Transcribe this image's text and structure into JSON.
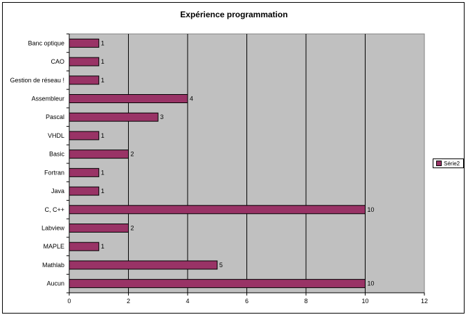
{
  "chart_data": {
    "type": "bar",
    "orientation": "horizontal",
    "title": "Expérience programmation",
    "categories": [
      "Banc optique",
      "CAO",
      "Gestion de réseau !",
      "Assembleur",
      "Pascal",
      "VHDL",
      "Basic",
      "Fortran",
      "Java",
      "C, C++",
      "Labview",
      "MAPLE",
      "Mathlab",
      "Aucun"
    ],
    "series": [
      {
        "name": "Série2",
        "values": [
          1,
          1,
          1,
          4,
          3,
          1,
          2,
          1,
          1,
          10,
          2,
          1,
          5,
          10
        ],
        "color": "#993366"
      }
    ],
    "xlim": [
      0,
      12
    ],
    "xticks": [
      0,
      2,
      4,
      6,
      8,
      10,
      12
    ],
    "data_labels": true,
    "grid": "vertical",
    "legend": "right",
    "plot_bg": "#c0c0c0"
  }
}
